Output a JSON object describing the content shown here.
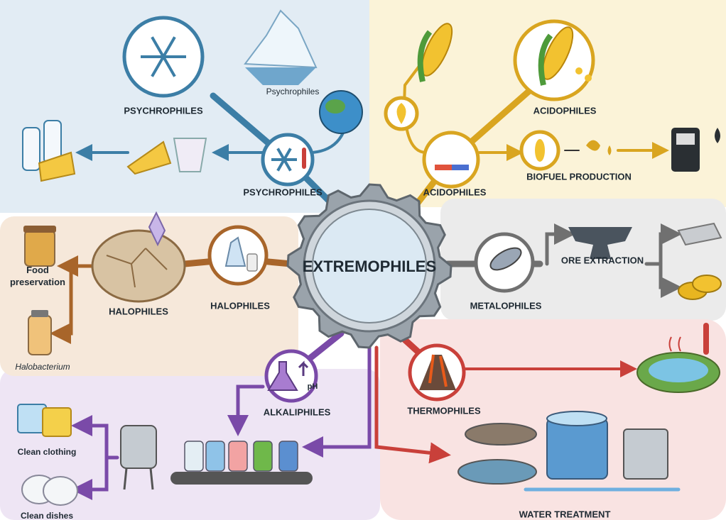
{
  "center": "EXTREMOPHILES",
  "psychrophiles": {
    "title": "PSYCHROPHILES",
    "iceberg": "Psychrophiles",
    "hub": "PSYCHROPHILES"
  },
  "acidophiles": {
    "title": "ACIDOPHILES",
    "hub": "ACIDOPHILES",
    "application": "BIOFUEL PRODUCTION"
  },
  "metalophiles": {
    "hub": "METALOPHILES",
    "application": "ORE EXTRACTION"
  },
  "halophiles": {
    "habitat": "HALOPHILES",
    "hub": "HALOPHILES",
    "application": "Food preservation",
    "organism": "Halobacterium"
  },
  "alkaliphiles": {
    "hub": "ALKALIPHILES",
    "icon": "pH",
    "applications": [
      "Clean clothing",
      "Clean dishes"
    ]
  },
  "thermophiles": {
    "hub": "THERMOPHILES",
    "application": "WATER TREATMENT"
  }
}
